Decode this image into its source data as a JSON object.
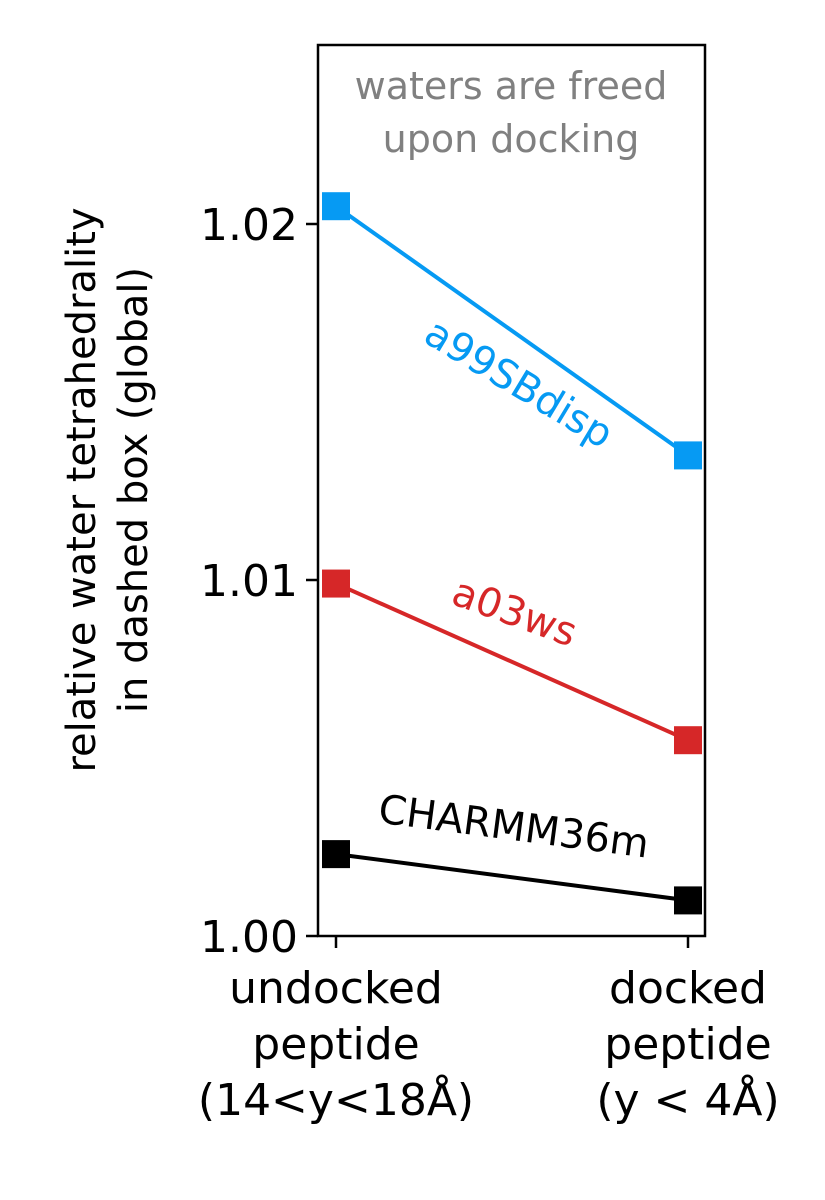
{
  "chart_data": {
    "type": "line",
    "categories": [
      [
        "undocked",
        "peptide",
        "(14<y<18Å)"
      ],
      [
        "docked",
        "peptide",
        "(y < 4Å)"
      ]
    ],
    "ylabel": [
      "relative water tetrahedrality",
      "in dashed box (global)"
    ],
    "ylim": [
      1.0,
      1.025
    ],
    "yticks": [
      1.0,
      1.01,
      1.02
    ],
    "ytick_labels": [
      "1.00",
      "1.01",
      "1.02"
    ],
    "annotation": [
      "waters are freed",
      "upon docking"
    ],
    "grid": false,
    "legend": "none",
    "series": [
      {
        "name": "a99SBdisp",
        "values": [
          1.0205,
          1.0135
        ],
        "color": "#069af3"
      },
      {
        "name": "a03ws",
        "values": [
          1.0099,
          1.0055
        ],
        "color": "#d62728"
      },
      {
        "name": "CHARMM36m",
        "values": [
          1.0023,
          1.001
        ],
        "color": "#000000"
      }
    ]
  }
}
